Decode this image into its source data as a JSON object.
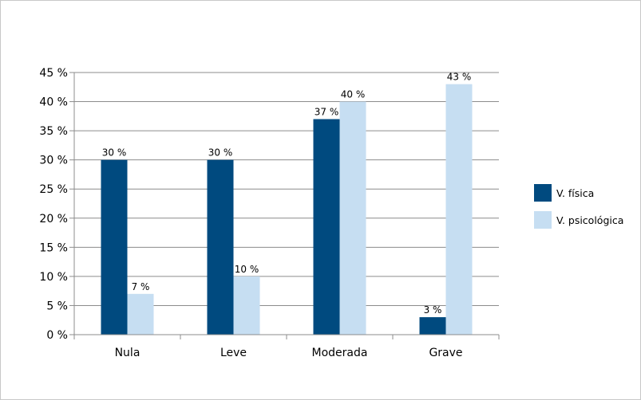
{
  "chart_data": {
    "type": "bar",
    "title": "",
    "xlabel": "",
    "ylabel": "",
    "categories": [
      "Nula",
      "Leve",
      "Moderada",
      "Grave"
    ],
    "series": [
      {
        "name": "V. física",
        "color": "#004a7f",
        "values": [
          30,
          30,
          37,
          3
        ]
      },
      {
        "name": "V. psicológica",
        "color": "#c6def2",
        "values": [
          7,
          10,
          40,
          43
        ]
      }
    ],
    "data_labels": [
      [
        "30 %",
        "30 %",
        "37 %",
        "3 %"
      ],
      [
        "7 %",
        "10 %",
        "40 %",
        "43 %"
      ]
    ],
    "ylim": [
      0,
      45
    ],
    "yticks": [
      0,
      5,
      10,
      15,
      20,
      25,
      30,
      35,
      40,
      45
    ],
    "ytick_labels": [
      "0 %",
      "5 %",
      "10 %",
      "15 %",
      "20 %",
      "25 %",
      "30 %",
      "35 %",
      "40 %",
      "45 %"
    ],
    "grid": true,
    "legend_position": "right"
  }
}
